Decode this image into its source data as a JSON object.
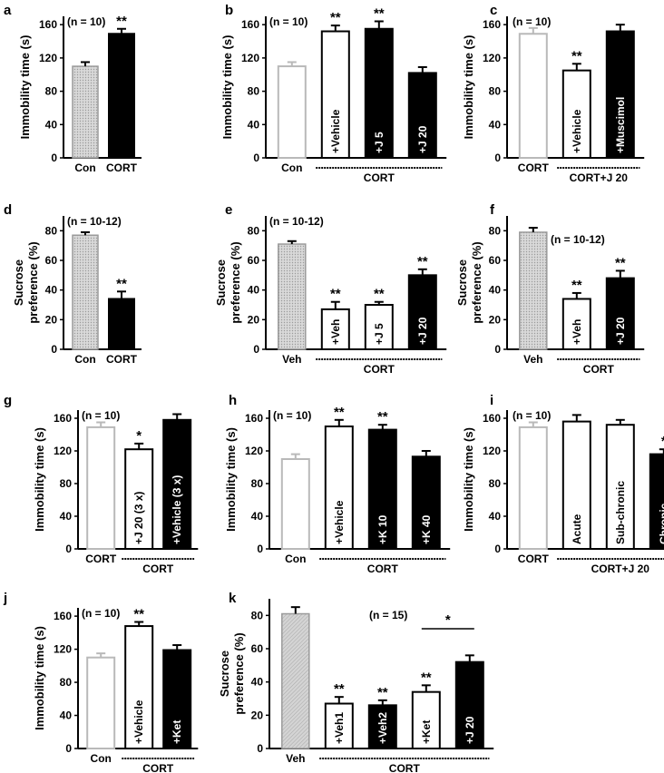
{
  "figure": {
    "panels": [
      {
        "label": "a"
      },
      {
        "label": "b"
      },
      {
        "label": "c"
      },
      {
        "label": "d"
      },
      {
        "label": "e"
      },
      {
        "label": "f"
      },
      {
        "label": "g"
      },
      {
        "label": "h"
      },
      {
        "label": "i"
      },
      {
        "label": "j"
      },
      {
        "label": "k"
      }
    ]
  },
  "colors": {
    "con_gray_outline": "#b9b9b9",
    "dotted_fill": "#cfcfcf",
    "black_bar": "#000000",
    "white_bar": "#ffffff",
    "axis": "#000000"
  },
  "chart_data": [
    {
      "type": "bar",
      "label": "a",
      "n_label": "(n = 10)",
      "ylabel": "Immobility time (s)",
      "ylim": [
        0,
        170
      ],
      "yticks": [
        0,
        40,
        80,
        120,
        160
      ],
      "categories": [
        "Con",
        "CORT"
      ],
      "values": [
        110,
        149
      ],
      "errors": [
        5,
        6
      ],
      "styles": [
        "dotted",
        "black"
      ],
      "bar_labels": [
        "",
        ""
      ],
      "significance": [
        "",
        "**"
      ],
      "group_label": "",
      "group_span": []
    },
    {
      "type": "bar",
      "label": "b",
      "n_label": "(n = 10)",
      "ylabel": "Immobility time (s)",
      "ylim": [
        0,
        170
      ],
      "yticks": [
        0,
        40,
        80,
        120,
        160
      ],
      "categories": [
        "Con",
        "",
        "",
        ""
      ],
      "values": [
        110,
        152,
        155,
        102
      ],
      "errors": [
        5,
        7,
        9,
        7
      ],
      "styles": [
        "gray",
        "white",
        "black",
        "black"
      ],
      "bar_labels": [
        "",
        "+Vehicle",
        "+J 5",
        "+J 20"
      ],
      "significance": [
        "",
        "**",
        "**",
        ""
      ],
      "group_label": "CORT",
      "group_span": [
        1,
        3
      ]
    },
    {
      "type": "bar",
      "label": "c",
      "n_label": "(n = 10)",
      "ylabel": "Immobility time (s)",
      "ylim": [
        0,
        170
      ],
      "yticks": [
        0,
        40,
        80,
        120,
        160
      ],
      "categories": [
        "CORT",
        "",
        ""
      ],
      "values": [
        149,
        105,
        152
      ],
      "errors": [
        7,
        8,
        8
      ],
      "styles": [
        "gray",
        "white",
        "black"
      ],
      "bar_labels": [
        "",
        "+Vehicle",
        "+Muscimol"
      ],
      "significance": [
        "",
        "**",
        ""
      ],
      "group_label": "CORT+J 20",
      "group_span": [
        1,
        2
      ]
    },
    {
      "type": "bar",
      "label": "d",
      "n_label": "(n = 10-12)",
      "ylabel": "Sucrose preference (%)",
      "ylim": [
        0,
        90
      ],
      "yticks": [
        0,
        20,
        40,
        60,
        80
      ],
      "categories": [
        "Con",
        "CORT"
      ],
      "values": [
        77,
        34
      ],
      "errors": [
        2,
        5
      ],
      "styles": [
        "dotted",
        "black"
      ],
      "bar_labels": [
        "",
        ""
      ],
      "significance": [
        "",
        "**"
      ],
      "group_label": "",
      "group_span": []
    },
    {
      "type": "bar",
      "label": "e",
      "n_label": "(n = 10-12)",
      "ylabel": "Sucrose preference (%)",
      "ylim": [
        0,
        90
      ],
      "yticks": [
        0,
        20,
        40,
        60,
        80
      ],
      "categories": [
        "Veh",
        "",
        "",
        ""
      ],
      "values": [
        71,
        27,
        30,
        50
      ],
      "errors": [
        2,
        5,
        2,
        4
      ],
      "styles": [
        "dotted",
        "white",
        "white",
        "black"
      ],
      "bar_labels": [
        "",
        "+Veh",
        "+J 5",
        "+J 20"
      ],
      "significance": [
        "",
        "**",
        "**",
        "**"
      ],
      "group_label": "CORT",
      "group_span": [
        1,
        3
      ]
    },
    {
      "type": "bar",
      "label": "f",
      "n_label": "(n = 10-12)",
      "ylabel": "Sucrose preference (%)",
      "ylim": [
        0,
        90
      ],
      "yticks": [
        0,
        20,
        40,
        60,
        80
      ],
      "categories": [
        "Veh",
        "",
        ""
      ],
      "values": [
        79,
        34,
        48
      ],
      "errors": [
        3,
        4,
        5
      ],
      "styles": [
        "dotted",
        "white",
        "black"
      ],
      "bar_labels": [
        "",
        "+Veh",
        "+J 20"
      ],
      "significance": [
        "",
        "**",
        "**"
      ],
      "group_label": "CORT",
      "group_span": [
        1,
        2
      ]
    },
    {
      "type": "bar",
      "label": "g",
      "n_label": "(n = 10)",
      "ylabel": "Immobility time (s)",
      "ylim": [
        0,
        170
      ],
      "yticks": [
        0,
        40,
        80,
        120,
        160
      ],
      "categories": [
        "CORT",
        "",
        ""
      ],
      "values": [
        149,
        122,
        158
      ],
      "errors": [
        6,
        7,
        7
      ],
      "styles": [
        "gray",
        "white",
        "black"
      ],
      "bar_labels": [
        "",
        "+J 20 (3 x)",
        "+Vehicle (3 x)"
      ],
      "significance": [
        "",
        "*",
        ""
      ],
      "group_label": "CORT",
      "group_span": [
        1,
        2
      ]
    },
    {
      "type": "bar",
      "label": "h",
      "n_label": "(n = 10)",
      "ylabel": "Immobility time (s)",
      "ylim": [
        0,
        170
      ],
      "yticks": [
        0,
        40,
        80,
        120,
        160
      ],
      "categories": [
        "Con",
        "",
        "",
        ""
      ],
      "values": [
        110,
        150,
        146,
        113
      ],
      "errors": [
        6,
        8,
        6,
        7
      ],
      "styles": [
        "gray",
        "white",
        "black",
        "black"
      ],
      "bar_labels": [
        "",
        "+Vehicle",
        "+K 10",
        "+K 40"
      ],
      "significance": [
        "",
        "**",
        "**",
        ""
      ],
      "group_label": "CORT",
      "group_span": [
        1,
        3
      ]
    },
    {
      "type": "bar",
      "label": "i",
      "n_label": "(n = 10)",
      "ylabel": "Immobility time (s)",
      "ylim": [
        0,
        170
      ],
      "yticks": [
        0,
        40,
        80,
        120,
        160
      ],
      "categories": [
        "CORT",
        "",
        "",
        ""
      ],
      "values": [
        149,
        156,
        152,
        116
      ],
      "errors": [
        6,
        8,
        6,
        6
      ],
      "styles": [
        "gray",
        "white",
        "white",
        "black"
      ],
      "bar_labels": [
        "",
        "Acute",
        "Sub-chronic",
        "Chronic"
      ],
      "significance": [
        "",
        "",
        "",
        "*"
      ],
      "group_label": "CORT+J 20",
      "group_span": [
        1,
        3
      ]
    },
    {
      "type": "bar",
      "label": "j",
      "n_label": "(n = 10)",
      "ylabel": "Immobility time (s)",
      "ylim": [
        0,
        170
      ],
      "yticks": [
        0,
        40,
        80,
        120,
        160
      ],
      "categories": [
        "Con",
        "",
        ""
      ],
      "values": [
        110,
        148,
        119
      ],
      "errors": [
        5,
        5,
        6
      ],
      "styles": [
        "gray",
        "white",
        "black"
      ],
      "bar_labels": [
        "",
        "+Vehicle",
        "+Ket"
      ],
      "significance": [
        "",
        "**",
        ""
      ],
      "group_label": "CORT",
      "group_span": [
        1,
        2
      ]
    },
    {
      "type": "bar",
      "label": "k",
      "n_label": "(n = 15)",
      "ylabel": "Sucrose preference (%)",
      "ylim": [
        0,
        90
      ],
      "yticks": [
        0,
        20,
        40,
        60,
        80
      ],
      "categories": [
        "Veh",
        "",
        "",
        "",
        ""
      ],
      "values": [
        81,
        27,
        26,
        34,
        52
      ],
      "errors": [
        4,
        4,
        3,
        4,
        4
      ],
      "styles": [
        "dotted",
        "white",
        "black",
        "white",
        "black"
      ],
      "bar_labels": [
        "",
        "+Veh1",
        "+Veh2",
        "+Ket",
        "+J 20"
      ],
      "significance": [
        "",
        "**",
        "**",
        "**",
        ""
      ],
      "group_label": "CORT",
      "group_span": [
        1,
        4
      ],
      "bracket": {
        "from": 3,
        "to": 4,
        "label": "*"
      }
    }
  ]
}
